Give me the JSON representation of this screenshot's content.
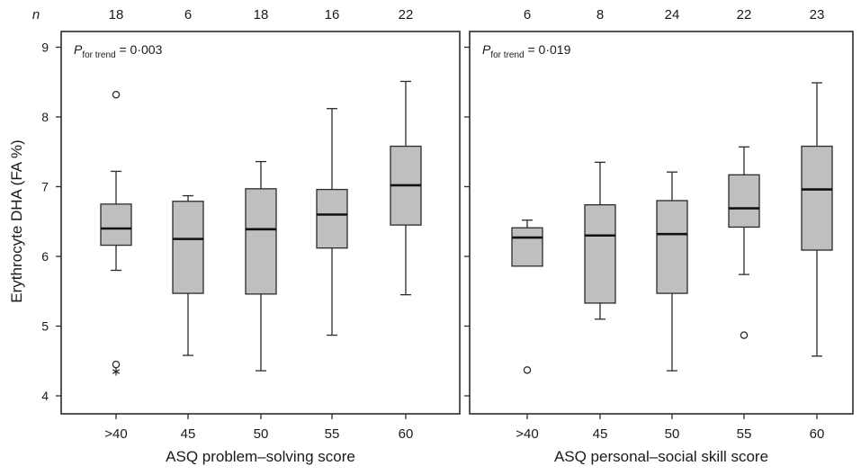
{
  "chart_data": {
    "type": "box",
    "n_label": "n",
    "ylabel": "Erythrocyte DHA (FA %)",
    "ylim": [
      3.7,
      9.25
    ],
    "yticks": [
      "4",
      "5",
      "6",
      "7",
      "8",
      "9"
    ],
    "colors": {
      "box_fill": "#bfbfbf",
      "stroke": "#2b2b2b"
    },
    "panels": [
      {
        "xlabel": "ASQ problem–solving score",
        "p_label": "P",
        "p_subscript": "for trend",
        "p_value": " = 0·003",
        "categories": [
          ">40",
          "45",
          "50",
          "55",
          "60"
        ],
        "n": [
          "18",
          "6",
          "18",
          "16",
          "22"
        ],
        "boxes": [
          {
            "whisker_low": 5.8,
            "q1": 6.16,
            "median": 6.4,
            "q3": 6.75,
            "whisker_high": 7.22,
            "outliers": [
              8.32,
              4.45
            ],
            "extremes": [
              4.38
            ]
          },
          {
            "whisker_low": 4.58,
            "q1": 5.47,
            "median": 6.25,
            "q3": 6.79,
            "whisker_high": 6.87,
            "outliers": [],
            "extremes": []
          },
          {
            "whisker_low": 4.36,
            "q1": 5.46,
            "median": 6.39,
            "q3": 6.97,
            "whisker_high": 7.36,
            "outliers": [],
            "extremes": []
          },
          {
            "whisker_low": 4.87,
            "q1": 6.12,
            "median": 6.6,
            "q3": 6.96,
            "whisker_high": 8.12,
            "outliers": [],
            "extremes": []
          },
          {
            "whisker_low": 5.45,
            "q1": 6.45,
            "median": 7.02,
            "q3": 7.58,
            "whisker_high": 8.51,
            "outliers": [],
            "extremes": []
          }
        ]
      },
      {
        "xlabel": "ASQ personal–social skill score",
        "p_label": "P",
        "p_subscript": "for trend",
        "p_value": " = 0·019",
        "categories": [
          ">40",
          "45",
          "50",
          "55",
          "60"
        ],
        "n": [
          "6",
          "8",
          "24",
          "22",
          "23"
        ],
        "boxes": [
          {
            "whisker_low": 5.86,
            "q1": 5.86,
            "median": 6.27,
            "q3": 6.41,
            "whisker_high": 6.52,
            "outliers": [
              4.37
            ],
            "extremes": []
          },
          {
            "whisker_low": 5.1,
            "q1": 5.33,
            "median": 6.3,
            "q3": 6.74,
            "whisker_high": 7.35,
            "outliers": [],
            "extremes": []
          },
          {
            "whisker_low": 4.36,
            "q1": 5.47,
            "median": 6.32,
            "q3": 6.8,
            "whisker_high": 7.21,
            "outliers": [],
            "extremes": []
          },
          {
            "whisker_low": 5.74,
            "q1": 6.42,
            "median": 6.69,
            "q3": 7.17,
            "whisker_high": 7.57,
            "outliers": [
              4.87
            ],
            "extremes": []
          },
          {
            "whisker_low": 4.57,
            "q1": 6.09,
            "median": 6.96,
            "q3": 7.58,
            "whisker_high": 8.49,
            "outliers": [],
            "extremes": []
          }
        ]
      }
    ]
  }
}
